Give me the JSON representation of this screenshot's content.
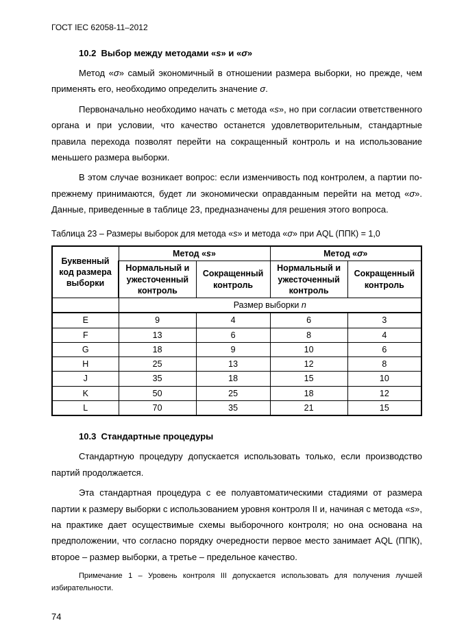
{
  "doc_header": "ГОСТ IEC 62058-11–2012",
  "section_10_2": {
    "number": "10.2",
    "title_html": "Выбор между методами «<span class='ital'>s</span>» и «<span class='ital'>σ</span>»"
  },
  "p1_html": "Метод «<span class='ital'>σ</span>» самый экономичный в отношении размера выборки, но прежде, чем применять его, необходимо определить значение <span class='ital'>σ</span>.",
  "p2_html": "Первоначально необходимо начать с метода «<span class='ital'>s</span>», но при согласии ответственного органа и при условии, что качество останется удовлетворительным, стандартные правила перехода позволят перейти на сокращенный контроль и на использование меньшего размера выборки.",
  "p3_html": "В этом случае  возникает вопрос: если изменчивость под контролем, а партии по-прежнему принимаются, будет ли экономически оправданным перейти на метод «<span class='ital'>σ</span>».  Данные, приведенные в  таблице 23, предназначены для решения этого вопроса.",
  "table_caption_html": "Таблица 23 – Размеры выборок для метода «<span class='ital'>s</span>»  и метода «<span class='ital'>σ</span>»  при AQL (ППК) = 1,0",
  "table": {
    "col_rowhead": "Буквенный код размера выборки",
    "method_s_html": "Метод «<span class='ital'>s</span>»",
    "method_sigma_html": "Метод «<span class='ital'>σ</span>»",
    "sub_normal": "Нормальный и ужесточенный контроль",
    "sub_reduced": "Сокращенный контроль",
    "size_label_html": "Размер выборки <span class='ital'>n</span>",
    "rows": [
      {
        "code": "E",
        "s_norm": "9",
        "s_red": "4",
        "sig_norm": "6",
        "sig_red": "3"
      },
      {
        "code": "F",
        "s_norm": "13",
        "s_red": "6",
        "sig_norm": "8",
        "sig_red": "4"
      },
      {
        "code": "G",
        "s_norm": "18",
        "s_red": "9",
        "sig_norm": "10",
        "sig_red": "6"
      },
      {
        "code": "H",
        "s_norm": "25",
        "s_red": "13",
        "sig_norm": "12",
        "sig_red": "8"
      },
      {
        "code": "J",
        "s_norm": "35",
        "s_red": "18",
        "sig_norm": "15",
        "sig_red": "10"
      },
      {
        "code": "K",
        "s_norm": "50",
        "s_red": "25",
        "sig_norm": "18",
        "sig_red": "12"
      },
      {
        "code": "L",
        "s_norm": "70",
        "s_red": "35",
        "sig_norm": "21",
        "sig_red": "15"
      }
    ]
  },
  "section_10_3": {
    "number": "10.3",
    "title": "Стандартные процедуры"
  },
  "p4": "Стандартную процедуру допускается использовать только, если производство партий продолжается.",
  "p5_html": "Эта стандартная процедура с ее полуавтоматическими стадиями от размера партии к размеру выборки с использованием уровня контроля II и, начиная с метода «<span class='ital'>s</span>», на практике дает осуществимые схемы выборочного контроля; но она основана на предположении, что согласно порядку очередности первое место занимает AQL (ППК), второе – размер выборки, а третье – предельное качество.",
  "note1": "Примечание 1 – Уровень контроля III  допускается использовать для получения лучшей избирательности.",
  "page_number": "74"
}
